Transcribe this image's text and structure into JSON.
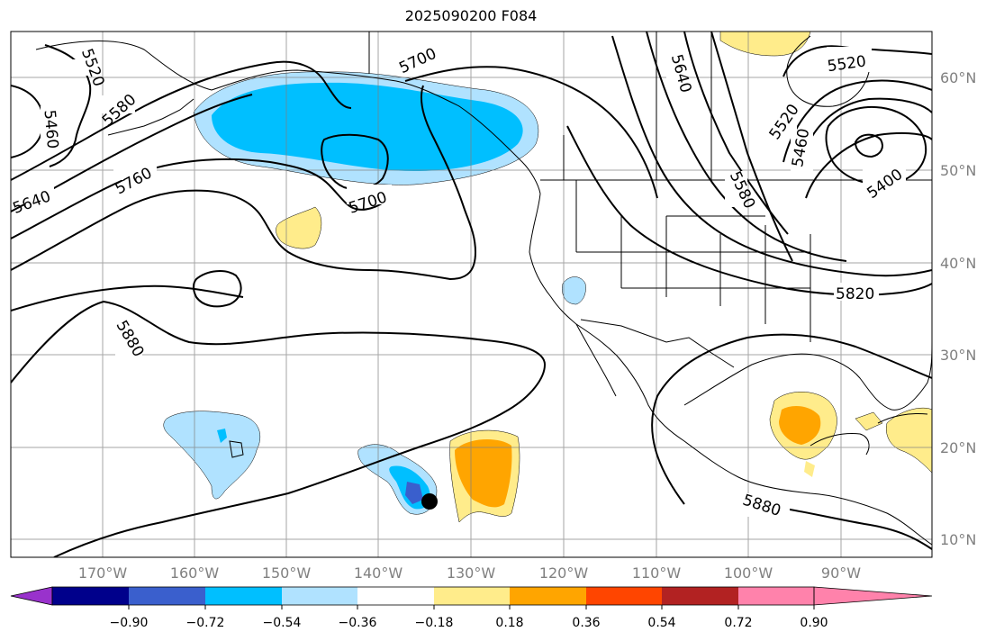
{
  "title": "2025090200 F084",
  "lat_labels": [
    "60°N",
    "50°N",
    "40°N",
    "30°N",
    "20°N",
    "10°N"
  ],
  "lon_labels": [
    "170°W",
    "160°W",
    "150°W",
    "140°W",
    "130°W",
    "120°W",
    "110°W",
    "100°W",
    "90°W"
  ],
  "contour_labels": [
    "5520",
    "5580",
    "5460",
    "5700",
    "5640",
    "5760",
    "5640",
    "5700",
    "5580",
    "5520",
    "5460",
    "5520",
    "5400",
    "5820",
    "5880",
    "5880"
  ],
  "colorbar": {
    "colors": [
      "#9932CC",
      "#00008B",
      "#3A5FCD",
      "#00BFFF",
      "#B0E2FF",
      "#FFFFFF",
      "#FFEC8B",
      "#FFA500",
      "#FF4500",
      "#B22222",
      "#FF82AB"
    ],
    "tick_labels": [
      "−0.90",
      "−0.72",
      "−0.54",
      "−0.36",
      "−0.18",
      "0.18",
      "0.36",
      "0.54",
      "0.72",
      "0.90"
    ]
  },
  "colors": {
    "contour": "#000000",
    "grid": "#808080",
    "storm_marker": "#000000"
  }
}
